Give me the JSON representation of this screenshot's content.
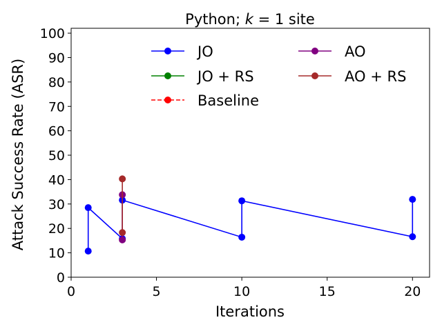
{
  "chart_data": {
    "type": "line",
    "title_prefix": "Python; ",
    "title_var": "k",
    "title_suffix": " = 1 site",
    "xlabel": "Iterations",
    "ylabel": "Attack Success Rate (ASR)",
    "xlim": [
      0,
      21
    ],
    "ylim": [
      0,
      102
    ],
    "xticks": [
      0,
      5,
      10,
      15,
      20
    ],
    "yticks": [
      0,
      10,
      20,
      30,
      40,
      50,
      60,
      70,
      80,
      90,
      100
    ],
    "grid": false,
    "legend_position": "top-center",
    "series": [
      {
        "name": "JO",
        "color": "#0000ff",
        "dashed": false,
        "points": [
          [
            1,
            10.7
          ],
          [
            1,
            28.5
          ],
          [
            3,
            15.8
          ],
          [
            3,
            31.6
          ],
          [
            10,
            16.4
          ],
          [
            10,
            31.3
          ],
          [
            20,
            16.6
          ],
          [
            20,
            31.9
          ]
        ]
      },
      {
        "name": "JO + RS",
        "color": "#008000",
        "dashed": false,
        "points": []
      },
      {
        "name": "Baseline",
        "color": "#ff0000",
        "dashed": true,
        "points": []
      },
      {
        "name": "AO",
        "color": "#800080",
        "dashed": false,
        "points": [
          [
            3,
            15.3
          ],
          [
            3,
            33.8
          ]
        ]
      },
      {
        "name": "AO + RS",
        "color": "#a52a2a",
        "dashed": false,
        "points": [
          [
            3,
            18.3
          ],
          [
            3,
            40.3
          ]
        ]
      }
    ]
  }
}
